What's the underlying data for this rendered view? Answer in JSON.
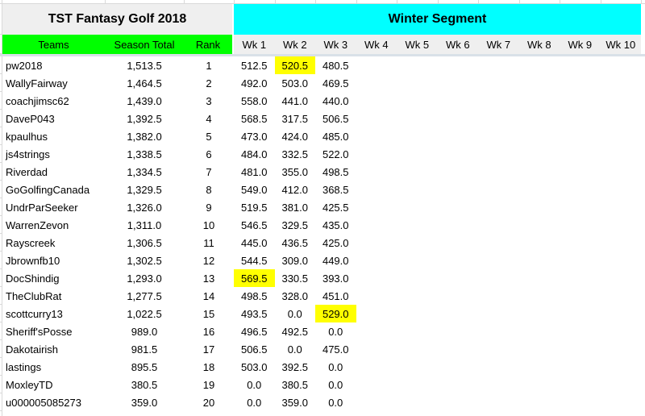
{
  "title": {
    "left": "TST Fantasy Golf 2018",
    "right": "Winter Segment"
  },
  "columns": {
    "teams": "Teams",
    "season_total": "Season Total",
    "rank": "Rank",
    "weeks": [
      "Wk 1",
      "Wk 2",
      "Wk 3",
      "Wk 4",
      "Wk 5",
      "Wk 6",
      "Wk 7",
      "Wk 8",
      "Wk 9",
      "Wk 10"
    ]
  },
  "colors": {
    "header_green": "#00ff00",
    "banner_cyan": "#00ffff",
    "highlight_yellow": "#ffff00",
    "header_gray": "#efefef"
  },
  "table": {
    "rows": [
      {
        "team": "pw2018",
        "season_total": "1,513.5",
        "rank": "1",
        "weeks": [
          "512.5",
          "520.5",
          "480.5"
        ],
        "highlight_week": 2
      },
      {
        "team": "WallyFairway",
        "season_total": "1,464.5",
        "rank": "2",
        "weeks": [
          "492.0",
          "503.0",
          "469.5"
        ],
        "highlight_week": null
      },
      {
        "team": "coachjimsc62",
        "season_total": "1,439.0",
        "rank": "3",
        "weeks": [
          "558.0",
          "441.0",
          "440.0"
        ],
        "highlight_week": null
      },
      {
        "team": "DaveP043",
        "season_total": "1,392.5",
        "rank": "4",
        "weeks": [
          "568.5",
          "317.5",
          "506.5"
        ],
        "highlight_week": null
      },
      {
        "team": "kpaulhus",
        "season_total": "1,382.0",
        "rank": "5",
        "weeks": [
          "473.0",
          "424.0",
          "485.0"
        ],
        "highlight_week": null
      },
      {
        "team": "js4strings",
        "season_total": "1,338.5",
        "rank": "6",
        "weeks": [
          "484.0",
          "332.5",
          "522.0"
        ],
        "highlight_week": null
      },
      {
        "team": "Riverdad",
        "season_total": "1,334.5",
        "rank": "7",
        "weeks": [
          "481.0",
          "355.0",
          "498.5"
        ],
        "highlight_week": null
      },
      {
        "team": "GoGolfingCanada",
        "season_total": "1,329.5",
        "rank": "8",
        "weeks": [
          "549.0",
          "412.0",
          "368.5"
        ],
        "highlight_week": null
      },
      {
        "team": "UndrParSeeker",
        "season_total": "1,326.0",
        "rank": "9",
        "weeks": [
          "519.5",
          "381.0",
          "425.5"
        ],
        "highlight_week": null
      },
      {
        "team": "WarrenZevon",
        "season_total": "1,311.0",
        "rank": "10",
        "weeks": [
          "546.5",
          "329.5",
          "435.0"
        ],
        "highlight_week": null
      },
      {
        "team": "Rayscreek",
        "season_total": "1,306.5",
        "rank": "11",
        "weeks": [
          "445.0",
          "436.5",
          "425.0"
        ],
        "highlight_week": null
      },
      {
        "team": "Jbrownfb10",
        "season_total": "1,302.5",
        "rank": "12",
        "weeks": [
          "544.5",
          "309.0",
          "449.0"
        ],
        "highlight_week": null
      },
      {
        "team": "DocShindig",
        "season_total": "1,293.0",
        "rank": "13",
        "weeks": [
          "569.5",
          "330.5",
          "393.0"
        ],
        "highlight_week": 1
      },
      {
        "team": "TheClubRat",
        "season_total": "1,277.5",
        "rank": "14",
        "weeks": [
          "498.5",
          "328.0",
          "451.0"
        ],
        "highlight_week": null
      },
      {
        "team": "scottcurry13",
        "season_total": "1,022.5",
        "rank": "15",
        "weeks": [
          "493.5",
          "0.0",
          "529.0"
        ],
        "highlight_week": 3
      },
      {
        "team": "Sheriff'sPosse",
        "season_total": "989.0",
        "rank": "16",
        "weeks": [
          "496.5",
          "492.5",
          "0.0"
        ],
        "highlight_week": null
      },
      {
        "team": "Dakotairish",
        "season_total": "981.5",
        "rank": "17",
        "weeks": [
          "506.5",
          "0.0",
          "475.0"
        ],
        "highlight_week": null
      },
      {
        "team": "lastings",
        "season_total": "895.5",
        "rank": "18",
        "weeks": [
          "503.0",
          "392.5",
          "0.0"
        ],
        "highlight_week": null
      },
      {
        "team": "MoxleyTD",
        "season_total": "380.5",
        "rank": "19",
        "weeks": [
          "0.0",
          "380.5",
          "0.0"
        ],
        "highlight_week": null
      },
      {
        "team": "u000005085273",
        "season_total": "359.0",
        "rank": "20",
        "weeks": [
          "0.0",
          "359.0",
          "0.0"
        ],
        "highlight_week": null
      }
    ]
  }
}
